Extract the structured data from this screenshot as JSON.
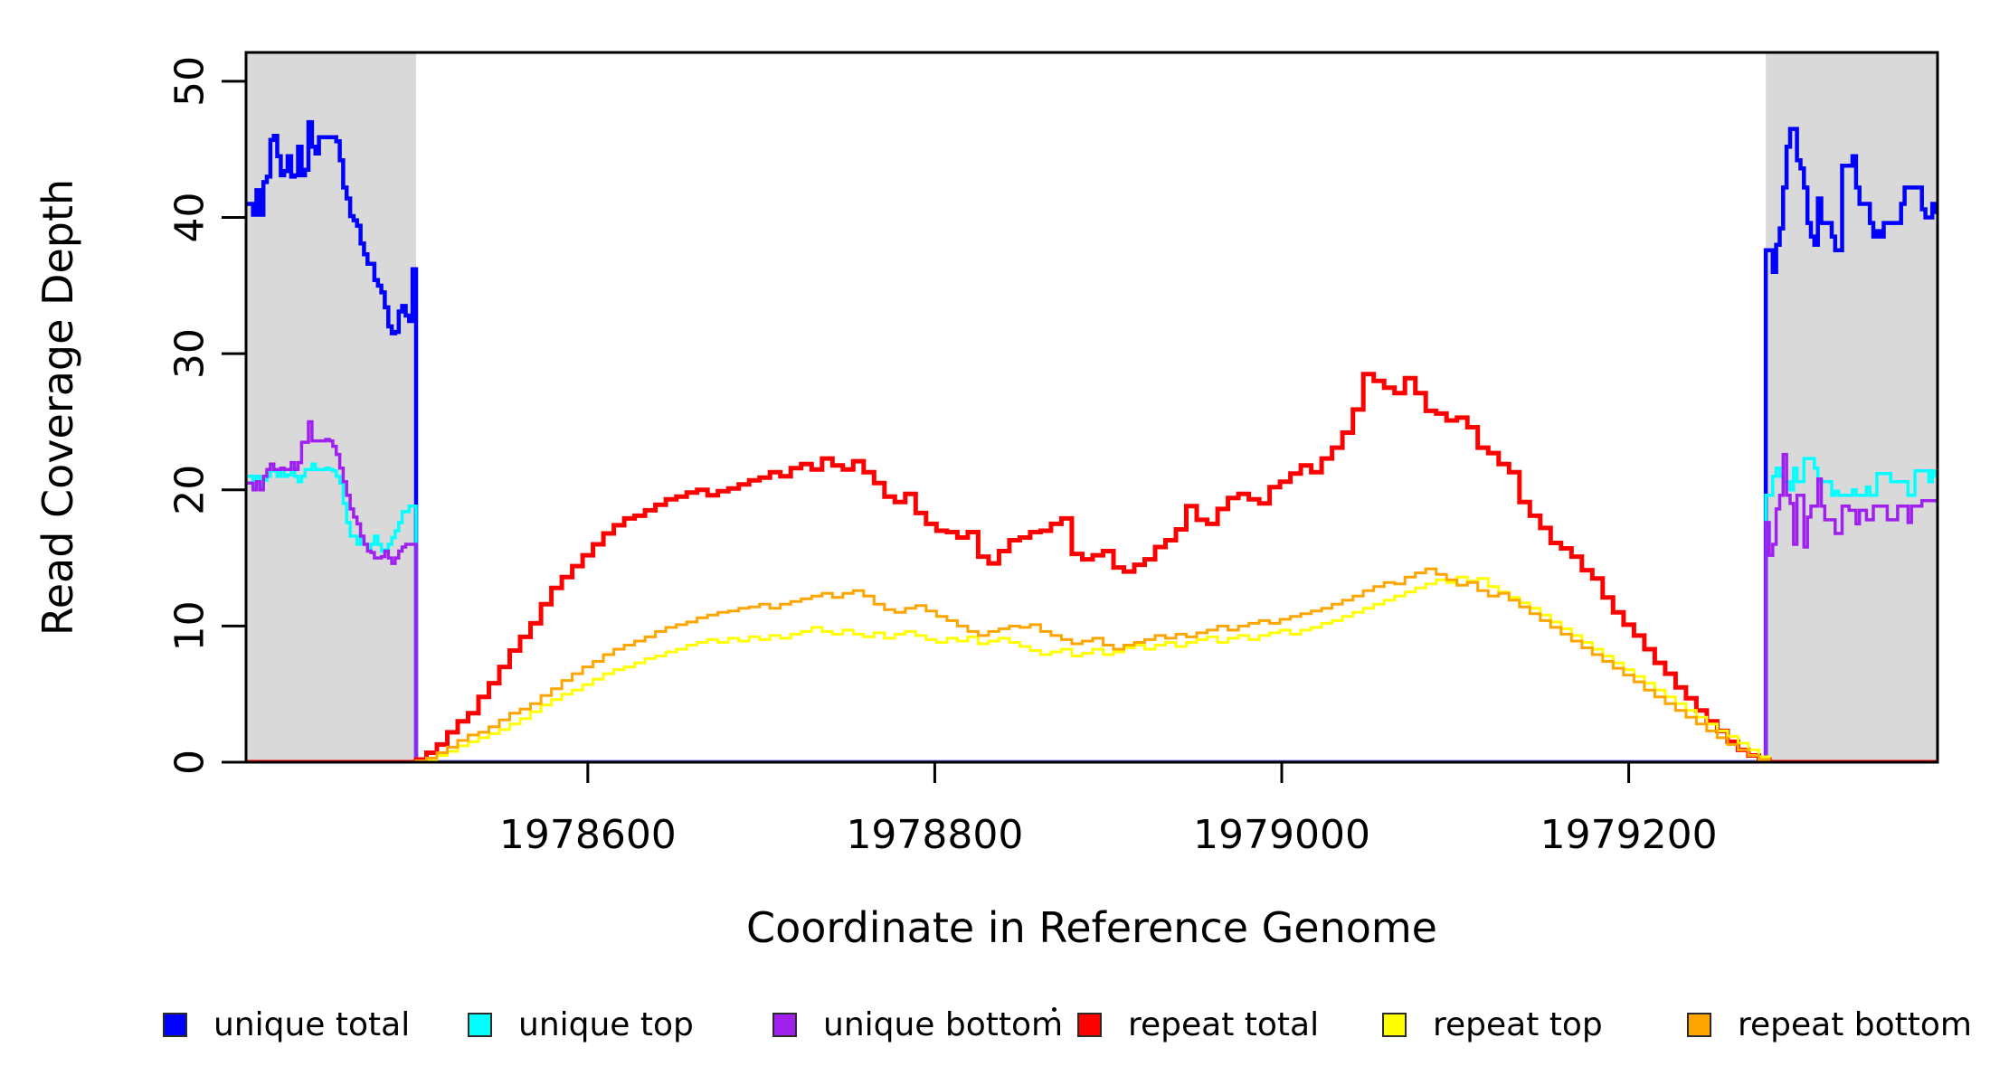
{
  "legend": {
    "items": [
      {
        "label": "unique total",
        "color": "#0000FF"
      },
      {
        "label": "unique top",
        "color": "#00FFFF"
      },
      {
        "label": "unique bottom",
        "color": "#A020F0"
      },
      {
        "label": "repeat total",
        "color": "#FF0000"
      },
      {
        "label": "repeat top",
        "color": "#FFFF00"
      },
      {
        "label": "repeat bottom",
        "color": "#FFA500"
      }
    ],
    "stray_dot": "."
  },
  "chart_data": {
    "type": "line",
    "step": true,
    "title": "",
    "xlabel": "Coordinate in Reference Genome",
    "ylabel": "Read Coverage Depth",
    "x_domain": [
      1978403,
      1979378
    ],
    "y_domain": [
      0,
      52.12
    ],
    "x_ticks": [
      1978600,
      1978800,
      1979000,
      1979200
    ],
    "y_ticks": [
      0,
      10,
      20,
      30,
      40,
      50
    ],
    "grid": false,
    "legend_position": "bottom",
    "shaded_regions": {
      "color": "#D9D9D9",
      "x_ranges": [
        [
          1978403,
          1978501
        ],
        [
          1979279,
          1979378
        ]
      ]
    },
    "series": [
      {
        "name": "unique total",
        "color": "#0000FF",
        "width": 4.5,
        "x_end": 1979378,
        "parts": [
          {
            "x0": 1978403,
            "dx": 2,
            "v": [
              41,
              41,
              40.2,
              42,
              40.2,
              42.6,
              43,
              45.7,
              46,
              44.5,
              43.1,
              43.4,
              44.5,
              43,
              43.1,
              45.2,
              43.1,
              43.5,
              47,
              45.2,
              44.7,
              45.9,
              45.9,
              45.9,
              45.9,
              45.9,
              45.6,
              44.2,
              42.2,
              41.4,
              40.1,
              39.8,
              39.4,
              38.1,
              37.3,
              36.6,
              36.6,
              35.4,
              35,
              34.5,
              33.4,
              32,
              31.5,
              31.6,
              33.1,
              33.5,
              32.8,
              32.4,
              36.2
            ]
          },
          {
            "x0": 1978501,
            "dx": 778,
            "v": [
              0
            ]
          },
          {
            "x0": 1979279,
            "dx": 2,
            "v": [
              37.6,
              37.6,
              36,
              38,
              39.2,
              42.2,
              45.2,
              46.5,
              46.5,
              44.2,
              43.6,
              42.2,
              39.6,
              38.6,
              38,
              41.4,
              39.6,
              39.6,
              39.6,
              38.6,
              37.6,
              37.6,
              43.8,
              43.8,
              43.8,
              44.5,
              42.2,
              41,
              41,
              41,
              39.6,
              38.6,
              39,
              38.6,
              39.6,
              39.6,
              39.6,
              39.6,
              39.6,
              41,
              42.2,
              42.2,
              42.2,
              42.2,
              42.2,
              40.6,
              40,
              40,
              41,
              40.4
            ]
          }
        ]
      },
      {
        "name": "unique top",
        "color": "#00FFFF",
        "width": 3.5,
        "x_end": 1979378,
        "parts": [
          {
            "x0": 1978403,
            "dx": 2,
            "v": [
              21,
              21,
              20.2,
              21,
              20.3,
              20.7,
              21,
              21.9,
              21.4,
              21,
              21.5,
              21,
              21.1,
              21.6,
              21,
              20.6,
              21,
              21.5,
              21.5,
              21.9,
              21.5,
              21.5,
              21.5,
              21.6,
              21.5,
              21.4,
              21,
              20.5,
              19,
              17.6,
              16.6,
              16.6,
              16,
              16.5,
              16,
              15.6,
              16,
              16.6,
              16,
              15.5,
              15.6,
              16,
              16.5,
              17,
              17.6,
              18.4,
              18.4,
              18.8,
              18.8
            ]
          },
          {
            "x0": 1978501,
            "dx": 778,
            "v": [
              0
            ]
          },
          {
            "x0": 1979279,
            "dx": 2,
            "v": [
              19.6,
              19.6,
              21,
              21.6,
              21,
              20.6,
              20.6,
              20,
              21.6,
              20.6,
              20.6,
              22.3,
              22.3,
              22.3,
              21.6,
              20.6,
              20.6,
              20.6,
              20.6,
              19.6,
              19.9,
              19.6,
              19.6,
              19.6,
              19.6,
              20,
              19.6,
              19.6,
              19.6,
              20.2,
              19.6,
              19.6,
              21.2,
              21.2,
              21.2,
              21.2,
              20.6,
              20.6,
              20.6,
              20.6,
              20.6,
              19.6,
              19.6,
              21.4,
              21.4,
              21.4,
              21.4,
              20.6,
              21.4,
              21
            ]
          }
        ]
      },
      {
        "name": "unique bottom",
        "color": "#A020F0",
        "width": 3.5,
        "x_end": 1979378,
        "parts": [
          {
            "x0": 1978403,
            "dx": 2,
            "v": [
              20.5,
              20.5,
              20,
              20.6,
              20,
              21,
              21.5,
              21.9,
              21.5,
              21.5,
              21.6,
              21.5,
              21.5,
              22,
              21.5,
              22,
              23.5,
              23.5,
              25,
              23.6,
              23.6,
              23.6,
              23.6,
              23.7,
              23.6,
              23.2,
              22.6,
              21.6,
              20.6,
              19.6,
              18.6,
              18,
              17.5,
              16.6,
              16,
              15.5,
              15.4,
              15,
              15,
              15.1,
              15.5,
              15,
              14.6,
              15,
              15.5,
              15.8,
              16,
              16,
              16
            ]
          },
          {
            "x0": 1978501,
            "dx": 778,
            "v": [
              0
            ]
          },
          {
            "x0": 1979279,
            "dx": 2,
            "v": [
              17.6,
              15.2,
              16,
              18.6,
              19.6,
              22.6,
              19.6,
              19,
              16,
              19.6,
              19.6,
              15.8,
              18,
              18.8,
              18.8,
              20.8,
              18.8,
              17.8,
              17.8,
              17.8,
              16.8,
              16.8,
              18.8,
              18.8,
              18.5,
              18.5,
              17.5,
              18.5,
              18.5,
              17.8,
              17.8,
              18.8,
              18.8,
              18.8,
              18.8,
              17.8,
              17.8,
              17.8,
              18.8,
              18.8,
              18.8,
              17.6,
              18.8,
              18.8,
              18.8,
              19.2,
              19.2,
              19.2,
              19.2,
              19.2
            ]
          }
        ]
      },
      {
        "name": "repeat total",
        "color": "#FF0000",
        "width": 5,
        "x_end": 1979378,
        "parts": [
          {
            "x0": 1978403,
            "dx": 98,
            "v": [
              0
            ]
          },
          {
            "x0": 1978501,
            "dx": 6,
            "v": [
              0.2,
              0.7,
              1.3,
              2.2,
              3.0,
              3.6,
              4.8,
              5.8,
              7.0,
              8.2,
              9.2,
              10.2,
              11.6,
              12.8,
              13.6,
              14.4,
              15.2,
              16.0,
              16.8,
              17.4,
              17.9,
              18.1,
              18.5,
              18.9,
              19.3,
              19.5,
              19.8,
              20.0,
              19.6,
              19.9,
              20.1,
              20.4,
              20.7,
              20.9,
              21.3,
              21.0,
              21.6,
              21.9,
              21.5,
              22.3,
              21.8,
              21.5,
              22.1,
              21.3,
              20.5,
              19.5,
              19.1,
              19.7,
              18.3,
              17.5,
              17.0,
              16.9,
              16.5,
              16.9,
              15.1,
              14.6,
              15.5,
              16.3,
              16.5,
              16.9,
              17.0,
              17.5,
              17.9,
              15.3,
              14.9,
              15.2,
              15.5,
              14.3,
              14.0,
              14.5,
              14.9,
              15.8,
              16.3,
              17.1,
              18.8,
              17.8,
              17.5,
              18.6,
              19.4,
              19.7,
              19.3,
              19.0,
              20.2,
              20.6,
              21.2,
              21.8,
              21.3,
              22.3,
              23.1,
              24.2,
              25.9,
              28.5,
              28.0,
              27.5,
              27.1,
              28.2,
              27.1,
              25.8,
              25.6,
              25.1,
              25.3,
              24.6,
              23.1,
              22.7,
              21.9,
              21.3,
              19.1,
              18.1,
              17.2,
              16.1,
              15.7,
              15.1,
              14.1,
              13.5,
              12.1,
              11.0,
              10.1,
              9.3,
              8.3,
              7.3,
              6.5,
              5.5,
              4.7,
              3.8,
              3.0,
              2.3,
              1.5,
              0.9,
              0.5,
              0.2
            ]
          },
          {
            "x0": 1979281,
            "dx": 97,
            "v": [
              0
            ]
          }
        ]
      },
      {
        "name": "repeat top",
        "color": "#FFFF00",
        "width": 3,
        "x_end": 1979378,
        "parts": [
          {
            "x0": 1978403,
            "dx": 98,
            "v": [
              0
            ]
          },
          {
            "x0": 1978501,
            "dx": 6,
            "v": [
              0.1,
              0.2,
              0.5,
              0.8,
              1.2,
              1.5,
              1.8,
              2.1,
              2.4,
              2.8,
              3.2,
              3.7,
              4.2,
              4.6,
              5.0,
              5.3,
              5.7,
              6.1,
              6.5,
              6.8,
              7.0,
              7.3,
              7.6,
              7.8,
              8.1,
              8.3,
              8.6,
              8.8,
              9.0,
              8.8,
              9.1,
              8.9,
              9.2,
              9.0,
              9.3,
              9.1,
              9.4,
              9.6,
              9.9,
              9.6,
              9.4,
              9.7,
              9.4,
              9.2,
              9.5,
              9.1,
              9.4,
              9.6,
              9.3,
              9.0,
              8.8,
              9.1,
              8.9,
              9.2,
              8.7,
              8.9,
              9.1,
              8.8,
              8.5,
              8.2,
              7.9,
              8.1,
              8.3,
              7.8,
              8.0,
              8.3,
              7.9,
              8.1,
              8.4,
              8.6,
              8.3,
              8.6,
              8.8,
              8.5,
              8.8,
              9.0,
              9.2,
              8.8,
              9.1,
              9.3,
              9.0,
              9.3,
              9.5,
              9.7,
              9.4,
              9.7,
              9.9,
              10.2,
              10.4,
              10.7,
              11.0,
              11.3,
              11.6,
              11.9,
              12.2,
              12.5,
              12.8,
              13.1,
              13.4,
              13.2,
              13.6,
              13.3,
              13.5,
              12.9,
              12.5,
              12.1,
              11.7,
              11.3,
              10.8,
              10.3,
              9.8,
              9.3,
              8.8,
              8.3,
              7.8,
              7.3,
              6.8,
              6.3,
              5.8,
              5.3,
              4.8,
              4.3,
              3.8,
              3.3,
              2.8,
              2.3,
              1.9,
              1.4,
              0.9,
              0.4
            ]
          },
          {
            "x0": 1979281,
            "dx": 97,
            "v": [
              0
            ]
          }
        ]
      },
      {
        "name": "repeat bottom",
        "color": "#FFA500",
        "width": 3,
        "x_end": 1979378,
        "parts": [
          {
            "x0": 1978403,
            "dx": 98,
            "v": [
              0
            ]
          },
          {
            "x0": 1978501,
            "dx": 6,
            "v": [
              0.1,
              0.3,
              0.7,
              1.1,
              1.6,
              2.0,
              2.2,
              2.6,
              3.1,
              3.6,
              3.9,
              4.3,
              4.9,
              5.4,
              6.0,
              6.5,
              7.0,
              7.4,
              7.9,
              8.3,
              8.6,
              8.9,
              9.2,
              9.6,
              9.9,
              10.1,
              10.3,
              10.6,
              10.8,
              11.0,
              11.1,
              11.3,
              11.4,
              11.6,
              11.3,
              11.6,
              11.8,
              12.0,
              12.2,
              12.4,
              12.1,
              12.4,
              12.6,
              12.2,
              11.6,
              11.2,
              11.0,
              11.3,
              11.5,
              11.1,
              10.7,
              10.4,
              10.0,
              9.6,
              9.3,
              9.6,
              9.8,
              10.0,
              9.9,
              10.1,
              9.6,
              9.3,
              9.0,
              8.7,
              8.9,
              9.1,
              8.6,
              8.3,
              8.6,
              8.8,
              9.0,
              9.3,
              9.1,
              9.4,
              9.2,
              9.5,
              9.7,
              10.0,
              9.7,
              10.0,
              10.2,
              10.4,
              10.2,
              10.5,
              10.7,
              10.9,
              11.1,
              11.3,
              11.6,
              11.9,
              12.2,
              12.6,
              12.9,
              13.2,
              13.1,
              13.6,
              13.9,
              14.2,
              13.8,
              13.4,
              13.0,
              13.2,
              12.6,
              12.2,
              12.4,
              11.9,
              11.4,
              10.9,
              10.4,
              9.9,
              9.4,
              8.9,
              8.4,
              7.9,
              7.4,
              6.9,
              6.4,
              5.9,
              5.3,
              4.8,
              4.3,
              3.8,
              3.3,
              2.8,
              2.3,
              1.8,
              1.3,
              0.9,
              0.5,
              0.2
            ]
          },
          {
            "x0": 1979281,
            "dx": 97,
            "v": [
              0
            ]
          }
        ]
      }
    ]
  }
}
